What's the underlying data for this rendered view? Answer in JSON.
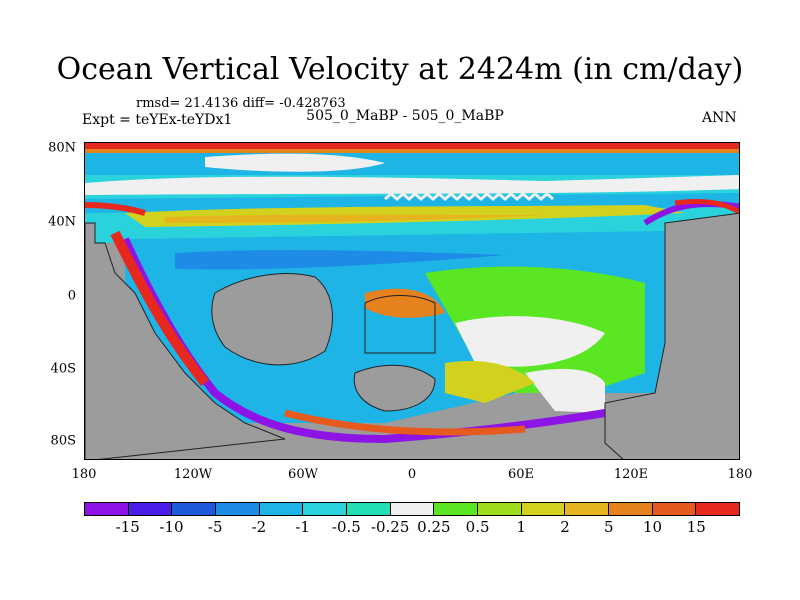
{
  "title": "Ocean Vertical Velocity at 2424m (in cm/day)",
  "stats": "rmsd= 21.4136 diff= -0.428763",
  "expt": "Expt = teYEx-teYDx1",
  "case": "505_0_MaBP - 505_0_MaBP",
  "season": "ANN",
  "y_labels": [
    "80N",
    "40N",
    "0",
    "40S",
    "80S"
  ],
  "x_labels": [
    "180",
    "120W",
    "60W",
    "0",
    "60E",
    "120E",
    "180"
  ],
  "colorbar": {
    "labels": [
      "-15",
      "-10",
      "-5",
      "-2",
      "-1",
      "-0.5",
      "-0.25",
      "0.25",
      "0.5",
      "1",
      "2",
      "5",
      "10",
      "15"
    ],
    "colors": [
      "#8e14e6",
      "#4a1ee6",
      "#1e5adc",
      "#1e8ce6",
      "#1eb4e6",
      "#2ad2dc",
      "#22e0b4",
      "#f0f0f0",
      "#5ae622",
      "#a0dc1e",
      "#d2d21e",
      "#e6b41e",
      "#e6821e",
      "#e65a1e",
      "#e6281e"
    ]
  },
  "palette": {
    "land": "#9c9c9c",
    "ocean": "#c8e6f0"
  }
}
